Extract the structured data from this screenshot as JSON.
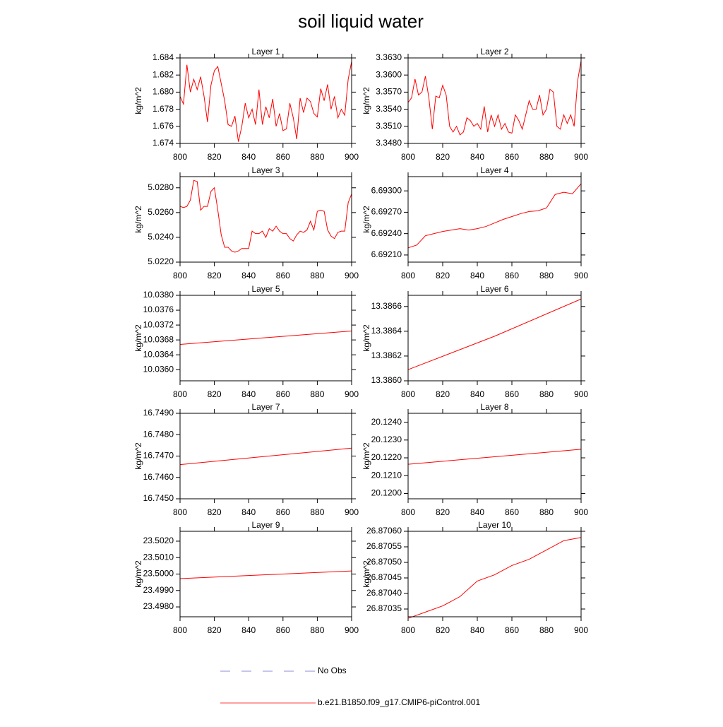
{
  "title": "soil liquid water",
  "legend": [
    {
      "name": "No Obs",
      "color": "#6a6acd",
      "dashed": true
    },
    {
      "name": "b.e21.B1850.f09_g17.CMIP6-piControl.001",
      "color": "#ff0000",
      "dashed": false
    }
  ],
  "chart_data": [
    {
      "type": "line",
      "title": "Layer 1",
      "ylabel": "kg/m^2",
      "x": [
        800,
        802,
        804,
        806,
        808,
        810,
        812,
        814,
        816,
        818,
        820,
        822,
        824,
        826,
        828,
        830,
        832,
        834,
        836,
        838,
        840,
        842,
        844,
        846,
        848,
        850,
        852,
        854,
        856,
        858,
        860,
        862,
        864,
        866,
        868,
        870,
        872,
        874,
        876,
        878,
        880,
        882,
        884,
        886,
        888,
        890,
        892,
        894,
        896,
        898,
        900
      ],
      "series": [
        {
          "color": "#ff0000",
          "values": [
            1.6795,
            1.6786,
            1.6832,
            1.68,
            1.6815,
            1.6803,
            1.6818,
            1.6795,
            1.6765,
            1.6808,
            1.6825,
            1.683,
            1.681,
            1.679,
            1.6762,
            1.676,
            1.6772,
            1.6742,
            1.676,
            1.6787,
            1.677,
            1.678,
            1.6762,
            1.6803,
            1.6762,
            1.6783,
            1.677,
            1.6792,
            1.676,
            1.6775,
            1.6755,
            1.6757,
            1.6787,
            1.677,
            1.6745,
            1.6793,
            1.6776,
            1.6793,
            1.6789,
            1.6775,
            1.6771,
            1.6804,
            1.679,
            1.6809,
            1.678,
            1.6795,
            1.677,
            1.678,
            1.6773,
            1.6815,
            1.6836
          ]
        }
      ],
      "xlim": [
        800,
        900
      ],
      "xticks": [
        800,
        820,
        840,
        860,
        880,
        900
      ],
      "ylim": [
        1.674,
        1.684
      ],
      "yticks": [
        1.674,
        1.676,
        1.678,
        {
          "value": 1.68,
          "label": "1.680"
        },
        1.682,
        1.684
      ]
    },
    {
      "type": "line",
      "title": "Layer 2",
      "ylabel": "kg/m^2",
      "x": [
        800,
        802,
        804,
        806,
        808,
        810,
        812,
        814,
        816,
        818,
        820,
        822,
        824,
        826,
        828,
        830,
        832,
        834,
        836,
        838,
        840,
        842,
        844,
        846,
        848,
        850,
        852,
        854,
        856,
        858,
        860,
        862,
        864,
        866,
        868,
        870,
        872,
        874,
        876,
        878,
        880,
        882,
        884,
        886,
        888,
        890,
        892,
        894,
        896,
        898,
        900
      ],
      "series": [
        {
          "color": "#ff0000",
          "values": [
            3.3552,
            3.356,
            3.3593,
            3.3565,
            3.357,
            3.3598,
            3.356,
            3.3505,
            3.3563,
            3.356,
            3.3582,
            3.3565,
            3.351,
            3.35,
            3.351,
            3.3495,
            3.35,
            3.3525,
            3.352,
            3.351,
            3.3515,
            3.3505,
            3.3545,
            3.35,
            3.353,
            3.351,
            3.353,
            3.3505,
            3.3515,
            3.35,
            3.3498,
            3.353,
            3.352,
            3.3505,
            3.353,
            3.3555,
            3.354,
            3.354,
            3.3565,
            3.353,
            3.354,
            3.3575,
            3.357,
            3.351,
            3.3505,
            3.353,
            3.3515,
            3.353,
            3.351,
            3.359,
            3.3625
          ]
        }
      ],
      "xlim": [
        800,
        900
      ],
      "xticks": [
        800,
        820,
        840,
        860,
        880,
        900
      ],
      "ylim": [
        3.348,
        3.363
      ],
      "yticks": [
        {
          "value": 3.348,
          "label": "3.3480"
        },
        {
          "value": 3.351,
          "label": "3.3510"
        },
        {
          "value": 3.354,
          "label": "3.3540"
        },
        {
          "value": 3.357,
          "label": "3.3570"
        },
        {
          "value": 3.36,
          "label": "3.3600"
        },
        {
          "value": 3.363,
          "label": "3.3630"
        }
      ]
    },
    {
      "type": "line",
      "title": "Layer 3",
      "ylabel": "kg/m^2",
      "x": [
        800,
        802,
        804,
        806,
        808,
        810,
        812,
        814,
        816,
        818,
        820,
        822,
        824,
        826,
        828,
        830,
        832,
        834,
        836,
        838,
        840,
        842,
        844,
        846,
        848,
        850,
        852,
        854,
        856,
        858,
        860,
        862,
        864,
        866,
        868,
        870,
        872,
        874,
        876,
        878,
        880,
        882,
        884,
        886,
        888,
        890,
        892,
        894,
        896,
        898,
        900
      ],
      "series": [
        {
          "color": "#ff0000",
          "values": [
            5.0265,
            5.0264,
            5.0265,
            5.027,
            5.0286,
            5.0285,
            5.0262,
            5.0265,
            5.0265,
            5.0277,
            5.028,
            5.0262,
            5.0242,
            5.0232,
            5.0232,
            5.0229,
            5.0228,
            5.0229,
            5.0231,
            5.0231,
            5.0231,
            5.0245,
            5.0243,
            5.0243,
            5.0245,
            5.024,
            5.0247,
            5.0245,
            5.0249,
            5.0245,
            5.0243,
            5.0243,
            5.0239,
            5.0237,
            5.0242,
            5.0245,
            5.0244,
            5.0246,
            5.0253,
            5.0246,
            5.0261,
            5.0262,
            5.0261,
            5.0246,
            5.0241,
            5.0239,
            5.0244,
            5.0245,
            5.0245,
            5.0268,
            5.0275
          ]
        }
      ],
      "xlim": [
        800,
        900
      ],
      "xticks": [
        800,
        820,
        840,
        860,
        880,
        900
      ],
      "ylim": [
        5.022,
        5.0289
      ],
      "yticks": [
        {
          "value": 5.022,
          "label": "5.0220"
        },
        {
          "value": 5.024,
          "label": "5.0240"
        },
        {
          "value": 5.026,
          "label": "5.0260"
        },
        {
          "value": 5.028,
          "label": "5.0280"
        }
      ]
    },
    {
      "type": "line",
      "title": "Layer 4",
      "ylabel": "kg/m^2",
      "x": [
        800,
        805,
        810,
        815,
        820,
        825,
        830,
        835,
        840,
        845,
        850,
        855,
        860,
        865,
        870,
        875,
        880,
        885,
        890,
        895,
        900
      ],
      "series": [
        {
          "color": "#ff0000",
          "values": [
            6.6922,
            6.69224,
            6.69237,
            6.6924,
            6.69243,
            6.69245,
            6.69247,
            6.69245,
            6.69247,
            6.6925,
            6.69255,
            6.6926,
            6.69264,
            6.69268,
            6.69271,
            6.69272,
            6.69276,
            6.69295,
            6.69298,
            6.69296,
            6.6931
          ]
        }
      ],
      "xlim": [
        800,
        900
      ],
      "xticks": [
        800,
        820,
        840,
        860,
        880,
        900
      ],
      "ylim": [
        6.692,
        6.6932
      ],
      "yticks": [
        {
          "value": 6.6921,
          "label": "6.69210"
        },
        {
          "value": 6.6924,
          "label": "6.69240"
        },
        {
          "value": 6.6927,
          "label": "6.69270"
        },
        {
          "value": 6.693,
          "label": "6.69300"
        }
      ]
    },
    {
      "type": "line",
      "title": "Layer 5",
      "ylabel": "kg/m^2",
      "x": [
        800,
        900
      ],
      "series": [
        {
          "color": "#ff0000",
          "values": [
            10.03668,
            10.03704
          ]
        }
      ],
      "xlim": [
        800,
        900
      ],
      "xticks": [
        800,
        820,
        840,
        860,
        880,
        900
      ],
      "ylim": [
        10.0357,
        10.038
      ],
      "yticks": [
        {
          "value": 10.036,
          "label": "10.0360"
        },
        10.0364,
        10.0368,
        10.0372,
        10.0376,
        {
          "value": 10.038,
          "label": "10.0380"
        }
      ]
    },
    {
      "type": "line",
      "title": "Layer 6",
      "ylabel": "kg/m^2",
      "x": [
        800,
        850,
        900
      ],
      "series": [
        {
          "color": "#ff0000",
          "values": [
            13.38609,
            13.38636,
            13.38666
          ]
        }
      ],
      "xlim": [
        800,
        900
      ],
      "xticks": [
        800,
        820,
        840,
        860,
        880,
        900
      ],
      "ylim": [
        13.386,
        13.38669
      ],
      "yticks": [
        {
          "value": 13.386,
          "label": "13.3860"
        },
        13.3862,
        13.3864,
        13.3866
      ]
    },
    {
      "type": "line",
      "title": "Layer 7",
      "ylabel": "kg/m^2",
      "x": [
        800,
        900
      ],
      "series": [
        {
          "color": "#ff0000",
          "values": [
            16.7466,
            16.74737
          ]
        }
      ],
      "xlim": [
        800,
        900
      ],
      "xticks": [
        800,
        820,
        840,
        860,
        880,
        900
      ],
      "ylim": [
        16.745,
        16.749
      ],
      "yticks": [
        {
          "value": 16.745,
          "label": "16.7450"
        },
        {
          "value": 16.746,
          "label": "16.7460"
        },
        {
          "value": 16.747,
          "label": "16.7470"
        },
        {
          "value": 16.748,
          "label": "16.7480"
        },
        {
          "value": 16.749,
          "label": "16.7490"
        }
      ]
    },
    {
      "type": "line",
      "title": "Layer 8",
      "ylabel": "kg/m^2",
      "x": [
        800,
        900
      ],
      "series": [
        {
          "color": "#ff0000",
          "values": [
            20.12164,
            20.12248
          ]
        }
      ],
      "xlim": [
        800,
        900
      ],
      "xticks": [
        800,
        820,
        840,
        860,
        880,
        900
      ],
      "ylim": [
        20.1197,
        20.1245
      ],
      "yticks": [
        {
          "value": 20.12,
          "label": "20.1200"
        },
        {
          "value": 20.121,
          "label": "20.1210"
        },
        {
          "value": 20.122,
          "label": "20.1220"
        },
        {
          "value": 20.123,
          "label": "20.1230"
        },
        {
          "value": 20.124,
          "label": "20.1240"
        }
      ]
    },
    {
      "type": "line",
      "title": "Layer 9",
      "ylabel": "kg/m^2",
      "x": [
        800,
        900
      ],
      "series": [
        {
          "color": "#ff0000",
          "values": [
            23.49972,
            23.50019
          ]
        }
      ],
      "xlim": [
        800,
        900
      ],
      "xticks": [
        800,
        820,
        840,
        860,
        880,
        900
      ],
      "ylim": [
        23.4974,
        23.5026
      ],
      "yticks": [
        {
          "value": 23.498,
          "label": "23.4980"
        },
        {
          "value": 23.499,
          "label": "23.4990"
        },
        {
          "value": 23.5,
          "label": "23.5000"
        },
        {
          "value": 23.501,
          "label": "23.5010"
        },
        {
          "value": 23.502,
          "label": "23.5020"
        }
      ]
    },
    {
      "type": "line",
      "title": "Layer 10",
      "ylabel": "kg/m^2",
      "x": [
        800,
        810,
        820,
        830,
        840,
        850,
        860,
        870,
        880,
        890,
        900
      ],
      "series": [
        {
          "color": "#ff0000",
          "values": [
            26.87032,
            26.87034,
            26.87036,
            26.87039,
            26.87044,
            26.87046,
            26.87049,
            26.87051,
            26.87054,
            26.87057,
            26.87058
          ]
        }
      ],
      "xlim": [
        800,
        900
      ],
      "xticks": [
        800,
        820,
        840,
        860,
        880,
        900
      ],
      "ylim": [
        26.870325,
        26.8706
      ],
      "yticks": [
        26.87035,
        {
          "value": 26.8704,
          "label": "26.87040"
        },
        26.87045,
        {
          "value": 26.8705,
          "label": "26.87050"
        },
        26.87055,
        {
          "value": 26.8706,
          "label": "26.87060"
        }
      ]
    }
  ]
}
